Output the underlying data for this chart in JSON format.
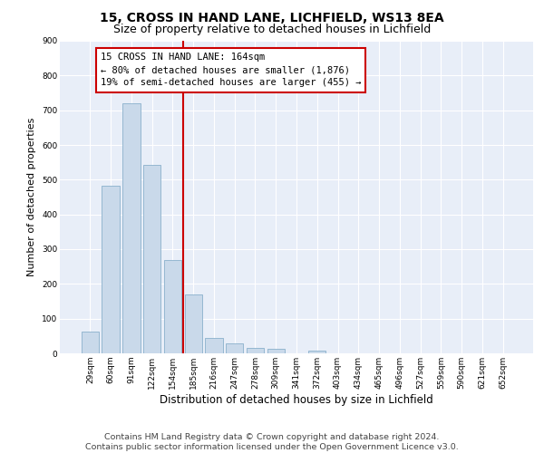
{
  "title1": "15, CROSS IN HAND LANE, LICHFIELD, WS13 8EA",
  "title2": "Size of property relative to detached houses in Lichfield",
  "xlabel": "Distribution of detached houses by size in Lichfield",
  "ylabel": "Number of detached properties",
  "categories": [
    "29sqm",
    "60sqm",
    "91sqm",
    "122sqm",
    "154sqm",
    "185sqm",
    "216sqm",
    "247sqm",
    "278sqm",
    "309sqm",
    "341sqm",
    "372sqm",
    "403sqm",
    "434sqm",
    "465sqm",
    "496sqm",
    "527sqm",
    "559sqm",
    "590sqm",
    "621sqm",
    "652sqm"
  ],
  "values": [
    62,
    482,
    720,
    542,
    270,
    170,
    44,
    30,
    15,
    12,
    0,
    8,
    0,
    0,
    0,
    0,
    0,
    0,
    0,
    0,
    0
  ],
  "bar_color": "#c9d9ea",
  "bar_edge_color": "#8ab0cc",
  "vline_color": "#cc0000",
  "vline_x": 4.5,
  "annotation_lines": [
    "15 CROSS IN HAND LANE: 164sqm",
    "← 80% of detached houses are smaller (1,876)",
    "19% of semi-detached houses are larger (455) →"
  ],
  "annotation_box_color": "#ffffff",
  "annotation_box_edge_color": "#cc0000",
  "ylim": [
    0,
    900
  ],
  "yticks": [
    0,
    100,
    200,
    300,
    400,
    500,
    600,
    700,
    800,
    900
  ],
  "plot_background": "#e8eef8",
  "footer1": "Contains HM Land Registry data © Crown copyright and database right 2024.",
  "footer2": "Contains public sector information licensed under the Open Government Licence v3.0.",
  "title1_fontsize": 10,
  "title2_fontsize": 9,
  "annotation_fontsize": 7.5,
  "ylabel_fontsize": 8,
  "xlabel_fontsize": 8.5,
  "footer_fontsize": 6.8,
  "tick_fontsize": 6.5
}
